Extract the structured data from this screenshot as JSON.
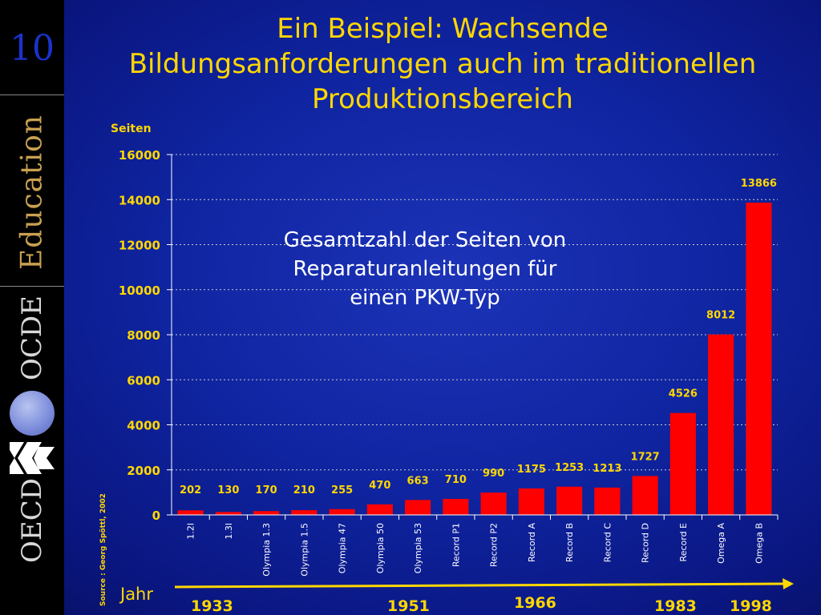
{
  "slide_number": "10",
  "title_lines": [
    "Ein Beispiel: Wachsende",
    "Bildungsanforderungen auch im traditionellen",
    "Produktionsbereich"
  ],
  "sidebar": {
    "logo_education": "Education",
    "logo_ocde": "OCDE",
    "logo_oecd": "OECD"
  },
  "annotation_lines": [
    "Gesamtzahl der Seiten von",
    "Reparaturanleitungen für",
    "einen PKW-Typ"
  ],
  "source": "Source : Georg Spöttl, 2002",
  "timeline": {
    "label": "Jahr",
    "years": [
      "1933",
      "1951",
      "1966",
      "1983",
      "1998"
    ]
  },
  "colors": {
    "bar": "#ff0000",
    "text_accent": "#ffd700",
    "background": "#0f24a0",
    "grid": "#cccccc"
  },
  "chart_data": {
    "type": "bar",
    "ylabel": "Seiten",
    "ylim": [
      0,
      16000
    ],
    "yticks": [
      0,
      2000,
      4000,
      6000,
      8000,
      10000,
      12000,
      14000,
      16000
    ],
    "grid": "horizontal dotted",
    "categories": [
      "1.2l",
      "1.3l",
      "Olympia 1.3",
      "Olympia 1.5",
      "Olympia 47",
      "Olympia 50",
      "Olympia 53",
      "Record P1",
      "Record P2",
      "Record A",
      "Record B",
      "Record C",
      "Record D",
      "Record E",
      "Omega A",
      "Omega B"
    ],
    "values": [
      202,
      130,
      170,
      210,
      255,
      470,
      663,
      710,
      990,
      1175,
      1253,
      1213,
      1727,
      4526,
      8012,
      13866
    ]
  }
}
